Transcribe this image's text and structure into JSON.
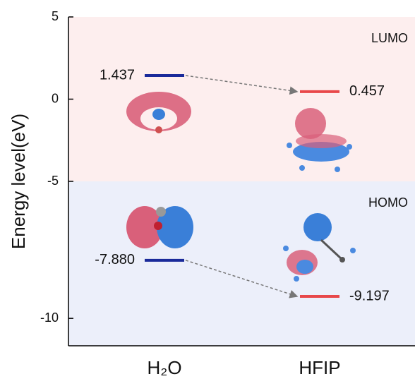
{
  "chart_data": {
    "type": "energy-level",
    "ylabel": "Energy level(eV)",
    "categories": [
      "H₂O",
      "HFIP"
    ],
    "colors": [
      "#1a2a9a",
      "#e8484a"
    ],
    "panels": [
      {
        "name": "LUMO",
        "background": "#fdeeee",
        "ylim": [
          -5,
          5
        ],
        "yticks": [
          5,
          0,
          -5
        ],
        "values": [
          1.437,
          0.457
        ]
      },
      {
        "name": "HOMO",
        "background": "#eceffa",
        "ylim": [
          -11,
          -5
        ],
        "yticks": [
          -10
        ],
        "values": [
          -7.88,
          -9.197
        ],
        "value_labels": [
          "-7.880",
          "-9.197"
        ]
      }
    ]
  }
}
